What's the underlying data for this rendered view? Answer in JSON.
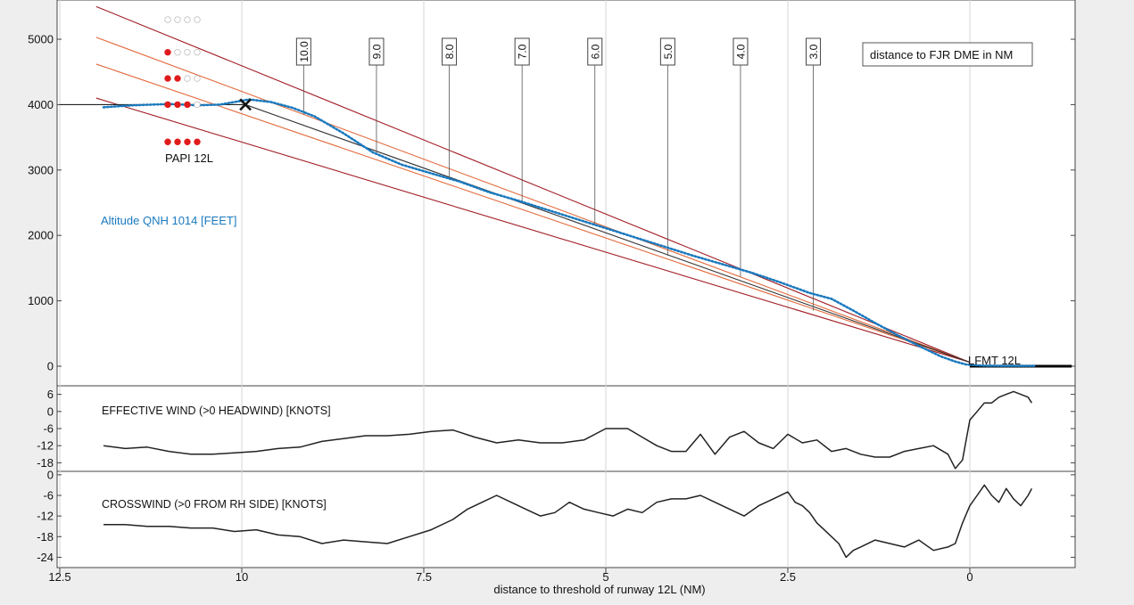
{
  "chart_data": [
    {
      "type": "line",
      "title": "",
      "xlabel": "distance to threshold of runway 12L (NM)",
      "x_ticks": [
        12.5,
        10,
        7.5,
        5,
        2.5,
        0
      ],
      "x_tick_labels": [
        "12.5",
        "10",
        "7.5",
        "5",
        "2.5",
        "0"
      ],
      "xlim": [
        12.5,
        -1.5
      ],
      "ylim": [
        -300,
        5600
      ],
      "y_ticks": [
        0,
        1000,
        2000,
        3000,
        4000,
        5000
      ],
      "y_tick_labels": [
        "0",
        "1000",
        "2000",
        "3000",
        "4000",
        "5000"
      ],
      "series_label": "Altitude QNH 1014 [FEET]",
      "series_color": "#1a7abf",
      "altitude": {
        "x": [
          11.9,
          11.5,
          11.0,
          10.6,
          10.3,
          10.1,
          9.9,
          9.6,
          9.3,
          9.0,
          8.6,
          8.2,
          7.8,
          7.4,
          7.0,
          6.6,
          6.2,
          5.8,
          5.4,
          5.0,
          4.6,
          4.2,
          3.8,
          3.4,
          3.0,
          2.6,
          2.2,
          1.9,
          1.6,
          1.3,
          1.0,
          0.7,
          0.4,
          0.2,
          0.05,
          -0.2,
          -0.5,
          -0.9
        ],
        "y": [
          3960,
          3990,
          4010,
          3990,
          4000,
          4040,
          4080,
          4040,
          3950,
          3820,
          3560,
          3270,
          3080,
          2950,
          2820,
          2660,
          2530,
          2390,
          2250,
          2110,
          1970,
          1830,
          1690,
          1560,
          1430,
          1280,
          1120,
          1030,
          850,
          660,
          480,
          310,
          150,
          70,
          25,
          8,
          5,
          5
        ]
      },
      "fix_marker": {
        "x": 9.95,
        "y": 4000
      },
      "glide_lines": [
        {
          "color": "#a01c24",
          "p1": [
            12.0,
            5500
          ],
          "p2": [
            0,
            60
          ]
        },
        {
          "color": "#e26a3c",
          "p1": [
            12.0,
            5030
          ],
          "p2": [
            0,
            60
          ]
        },
        {
          "color": "#e26a3c",
          "p1": [
            12.0,
            4620
          ],
          "p2": [
            0,
            60
          ]
        },
        {
          "color": "#a01c24",
          "p1": [
            12.0,
            4100
          ],
          "p2": [
            0,
            60
          ]
        },
        {
          "color": "#333333",
          "p1": [
            9.95,
            4000
          ],
          "p2": [
            0,
            60
          ]
        }
      ],
      "level_line": {
        "x_start": 12.5,
        "x_end": 9.95,
        "y": 4000
      },
      "runway_label": "LFMT 12L",
      "runway_bar": {
        "x_start": 0,
        "x_end": -1.4,
        "y": 0
      },
      "papi_label": "PAPI 12L",
      "papi_rows": [
        {
          "y": 5300,
          "lights": [
            "white",
            "white",
            "white",
            "white"
          ]
        },
        {
          "y": 4800,
          "lights": [
            "red",
            "white",
            "white",
            "white"
          ]
        },
        {
          "y": 4400,
          "lights": [
            "red",
            "red",
            "white",
            "white"
          ]
        },
        {
          "y": 4000,
          "lights": [
            "red",
            "red",
            "red",
            "white"
          ]
        },
        {
          "y": 3430,
          "lights": [
            "red",
            "red",
            "red",
            "red"
          ]
        }
      ],
      "dme_legend": "distance to FJR DME in NM",
      "dme_markers": [
        {
          "label": "10.0",
          "x": 9.15,
          "y_bottom": 3850
        },
        {
          "label": "9.0",
          "x": 8.15,
          "y_bottom": 3230
        },
        {
          "label": "8.0",
          "x": 7.15,
          "y_bottom": 2850
        },
        {
          "label": "7.0",
          "x": 6.15,
          "y_bottom": 2510
        },
        {
          "label": "6.0",
          "x": 5.15,
          "y_bottom": 2160
        },
        {
          "label": "5.0",
          "x": 4.15,
          "y_bottom": 1690
        },
        {
          "label": "4.0",
          "x": 3.15,
          "y_bottom": 1370
        },
        {
          "label": "3.0",
          "x": 2.15,
          "y_bottom": 850
        }
      ]
    },
    {
      "type": "line",
      "title": "",
      "series_label": "EFFECTIVE WIND (>0 HEADWIND) [KNOTS]",
      "ylim": [
        -21,
        9
      ],
      "y_ticks": [
        6,
        0,
        -6,
        -12,
        -18
      ],
      "y_tick_labels": [
        "6",
        "0",
        "-6",
        "-12",
        "-18"
      ],
      "x": [
        11.9,
        11.6,
        11.3,
        11.0,
        10.7,
        10.4,
        10.1,
        9.8,
        9.5,
        9.2,
        8.9,
        8.6,
        8.3,
        8.0,
        7.7,
        7.4,
        7.1,
        6.8,
        6.5,
        6.2,
        5.9,
        5.6,
        5.3,
        5.0,
        4.7,
        4.5,
        4.3,
        4.1,
        3.9,
        3.7,
        3.5,
        3.3,
        3.1,
        2.9,
        2.7,
        2.5,
        2.3,
        2.1,
        1.9,
        1.7,
        1.5,
        1.3,
        1.1,
        0.9,
        0.7,
        0.5,
        0.3,
        0.2,
        0.1,
        0.0,
        -0.1,
        -0.2,
        -0.3,
        -0.4,
        -0.5,
        -0.6,
        -0.7,
        -0.8,
        -0.85
      ],
      "y": [
        -12,
        -13,
        -12.5,
        -14,
        -15,
        -15,
        -14.5,
        -14,
        -13,
        -12.5,
        -10.5,
        -9.5,
        -8.5,
        -8.5,
        -8,
        -7,
        -6.5,
        -9,
        -11,
        -10,
        -11,
        -11,
        -10,
        -6,
        -6,
        -9,
        -12,
        -14,
        -14,
        -8,
        -15,
        -9,
        -7,
        -11,
        -13,
        -8,
        -11,
        -10,
        -14,
        -13,
        -15,
        -16,
        -16,
        -14,
        -13,
        -12,
        -15,
        -20,
        -17,
        -3,
        0,
        3,
        3,
        5,
        6,
        7,
        6,
        5,
        3
      ]
    },
    {
      "type": "line",
      "title": "",
      "xlabel": "distance to threshold of runway 12L (NM)",
      "series_label": "CROSSWIND (>0 FROM RH SIDE) [KNOTS]",
      "ylim": [
        -27,
        1
      ],
      "y_ticks": [
        0,
        -6,
        -12,
        -18,
        -24
      ],
      "y_tick_labels": [
        "0",
        "-6",
        "-12",
        "-18",
        "-24"
      ],
      "x": [
        11.9,
        11.6,
        11.3,
        11.0,
        10.7,
        10.4,
        10.1,
        9.8,
        9.5,
        9.2,
        8.9,
        8.6,
        8.3,
        8.0,
        7.7,
        7.4,
        7.1,
        6.9,
        6.7,
        6.5,
        6.3,
        6.1,
        5.9,
        5.7,
        5.5,
        5.3,
        5.1,
        4.9,
        4.7,
        4.5,
        4.3,
        4.1,
        3.9,
        3.7,
        3.5,
        3.3,
        3.1,
        2.9,
        2.7,
        2.5,
        2.4,
        2.3,
        2.2,
        2.1,
        2.0,
        1.9,
        1.8,
        1.7,
        1.6,
        1.5,
        1.3,
        1.1,
        0.9,
        0.7,
        0.5,
        0.3,
        0.2,
        0.1,
        0.0,
        -0.1,
        -0.2,
        -0.3,
        -0.4,
        -0.5,
        -0.6,
        -0.7,
        -0.8,
        -0.85
      ],
      "y": [
        -14.5,
        -14.5,
        -15,
        -15,
        -15.5,
        -15.5,
        -16.5,
        -16,
        -17.5,
        -18,
        -20,
        -19,
        -19.5,
        -20,
        -18,
        -16,
        -13,
        -10,
        -8,
        -6,
        -8,
        -10,
        -12,
        -11,
        -8,
        -10,
        -11,
        -12,
        -10,
        -11,
        -8,
        -7,
        -7,
        -6,
        -8,
        -10,
        -12,
        -9,
        -7,
        -5,
        -8,
        -9,
        -11,
        -14,
        -16,
        -18,
        -20,
        -24,
        -22,
        -21,
        -19,
        -20,
        -21,
        -19,
        -22,
        -21,
        -20,
        -14,
        -9,
        -6,
        -3,
        -6,
        -8,
        -4,
        -7,
        -9,
        -6,
        -4
      ]
    }
  ]
}
